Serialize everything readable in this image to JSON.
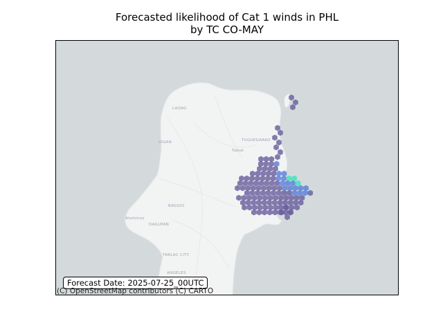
{
  "title": {
    "line1": "Forecasted likelihood of Cat 1 winds in PHL",
    "line2": "by TC CO-MAY"
  },
  "map": {
    "basemap": "CartoDB Positron",
    "sea_color": "#d4dadc",
    "land_color": "#f2f3f3",
    "place_labels": [
      "LAOAG",
      "VIGAN",
      "TUGUEGARAO",
      "Tabuk",
      "BAGUIO",
      "DAGUPAN",
      "Alaminos",
      "TARLAC CITY",
      "ANGELES"
    ],
    "icons": {
      "hexagon": "hexbin-cell-icon"
    }
  },
  "likelihood_layer": {
    "type": "hexbin",
    "colormap": "viridis-like (purple to turquoise)",
    "opacity": "semi-transparent",
    "low_color": "#6a5f9e",
    "mid_color": "#5a7fd8",
    "high_color": "#3fe0c0"
  },
  "forecast_date": "Forecast Date: 2025-07-25_00UTC",
  "attribution": "(C) OpenStreetMap contributors (C) CARTO"
}
